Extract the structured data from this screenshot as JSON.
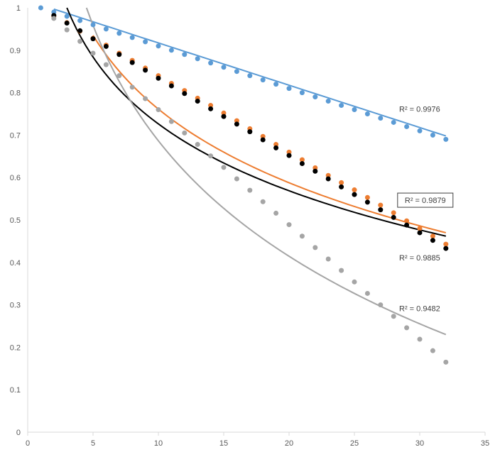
{
  "chart_data": {
    "type": "scatter",
    "title": "",
    "xlabel": "",
    "ylabel": "",
    "xlim": [
      0,
      35
    ],
    "ylim": [
      0,
      1
    ],
    "x_ticks": [
      0,
      5,
      10,
      15,
      20,
      25,
      30,
      35
    ],
    "y_ticks": [
      0,
      0.1,
      0.2,
      0.3,
      0.4,
      0.5,
      0.6,
      0.7,
      0.8,
      0.9,
      1
    ],
    "x_tick_labels": [
      "0",
      "5",
      "10",
      "15",
      "20",
      "25",
      "30",
      "35"
    ],
    "y_tick_labels": [
      "0",
      "0.1",
      "0.2",
      "0.3",
      "0.4",
      "0.5",
      "0.6",
      "0.7",
      "0.8",
      "0.9",
      "1"
    ],
    "grid": false,
    "legend": "none",
    "series": [
      {
        "color": "#5B9BD5",
        "marker": "dot",
        "x": [
          1,
          2,
          3,
          4,
          5,
          6,
          7,
          8,
          9,
          10,
          11,
          12,
          13,
          14,
          15,
          16,
          17,
          18,
          19,
          20,
          21,
          22,
          23,
          24,
          25,
          26,
          27,
          28,
          29,
          30,
          31,
          32
        ],
        "y": [
          1.0,
          0.99,
          0.98,
          0.97,
          0.96,
          0.95,
          0.94,
          0.93,
          0.92,
          0.91,
          0.9,
          0.89,
          0.88,
          0.87,
          0.86,
          0.85,
          0.84,
          0.83,
          0.82,
          0.81,
          0.8,
          0.79,
          0.78,
          0.77,
          0.76,
          0.75,
          0.74,
          0.73,
          0.72,
          0.71,
          0.7,
          0.69
        ],
        "trendline": {
          "type": "linear",
          "x_range": [
            2,
            32
          ],
          "y_start": 0.997,
          "y_end": 0.698,
          "r2_label": "R² = 0.9976",
          "boxed": false
        }
      },
      {
        "color": "#ED7D31",
        "marker": "dot",
        "x": [
          2,
          3,
          4,
          5,
          6,
          7,
          8,
          9,
          10,
          11,
          12,
          13,
          14,
          15,
          16,
          17,
          18,
          19,
          20,
          21,
          22,
          23,
          24,
          25,
          26,
          27,
          28,
          29,
          30,
          31,
          32
        ],
        "y": [
          0.98,
          0.965,
          0.945,
          0.928,
          0.912,
          0.893,
          0.876,
          0.858,
          0.84,
          0.822,
          0.805,
          0.787,
          0.77,
          0.752,
          0.734,
          0.715,
          0.697,
          0.678,
          0.66,
          0.642,
          0.623,
          0.605,
          0.588,
          0.571,
          0.553,
          0.535,
          0.517,
          0.498,
          0.48,
          0.462,
          0.443
        ],
        "trendline": {
          "type": "log",
          "x_range": [
            5,
            32
          ],
          "y_start": 0.935,
          "y_end": 0.47,
          "r2_label": "R² = 0.9879",
          "boxed": true
        }
      },
      {
        "color": "#000000",
        "marker": "dot",
        "x": [
          2,
          3,
          4,
          5,
          6,
          7,
          8,
          9,
          10,
          11,
          12,
          13,
          14,
          15,
          16,
          17,
          18,
          19,
          20,
          21,
          22,
          23,
          24,
          25,
          26,
          27,
          28,
          29,
          30,
          31,
          32
        ],
        "y": [
          0.982,
          0.964,
          0.946,
          0.927,
          0.909,
          0.89,
          0.871,
          0.853,
          0.834,
          0.816,
          0.798,
          0.78,
          0.762,
          0.744,
          0.726,
          0.708,
          0.689,
          0.67,
          0.652,
          0.633,
          0.615,
          0.597,
          0.578,
          0.56,
          0.542,
          0.524,
          0.506,
          0.488,
          0.47,
          0.452,
          0.433
        ],
        "trendline": {
          "type": "log",
          "x_range": [
            3,
            32
          ],
          "y_start": 1.0,
          "y_end": 0.462,
          "r2_label": "R² = 0.9885",
          "boxed": false
        }
      },
      {
        "color": "#A5A5A5",
        "marker": "dot",
        "x": [
          2,
          3,
          4,
          5,
          6,
          7,
          8,
          9,
          10,
          11,
          12,
          13,
          14,
          15,
          16,
          17,
          18,
          19,
          20,
          21,
          22,
          23,
          24,
          25,
          26,
          27,
          28,
          29,
          30,
          31,
          32
        ],
        "y": [
          0.975,
          0.948,
          0.921,
          0.893,
          0.866,
          0.84,
          0.813,
          0.786,
          0.76,
          0.732,
          0.705,
          0.678,
          0.651,
          0.624,
          0.597,
          0.57,
          0.543,
          0.516,
          0.489,
          0.462,
          0.435,
          0.408,
          0.381,
          0.354,
          0.327,
          0.3,
          0.273,
          0.246,
          0.219,
          0.192,
          0.165
        ],
        "trendline": {
          "type": "log",
          "x_range": [
            4.5,
            32
          ],
          "y_start": 1.0,
          "y_end": 0.23,
          "r2_label": "R² = 0.9482",
          "boxed": false
        }
      }
    ]
  }
}
